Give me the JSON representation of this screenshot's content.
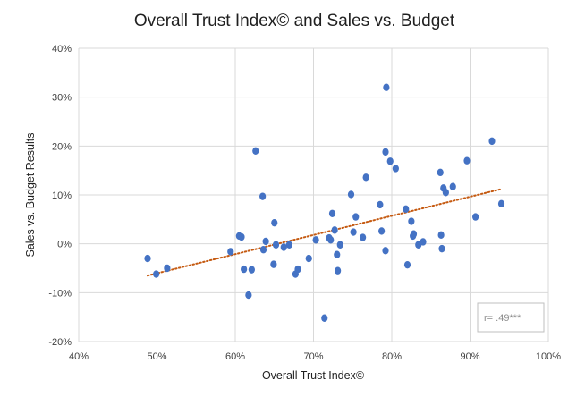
{
  "chart_data": {
    "type": "scatter",
    "title": "Overall Trust Index©  and Sales vs. Budget",
    "xlabel": "Overall Trust Index©",
    "ylabel": "Sales vs. Budget Results",
    "xlim": [
      0.4,
      1.0
    ],
    "ylim": [
      -0.2,
      0.4
    ],
    "x_ticks": [
      0.4,
      0.5,
      0.6,
      0.7,
      0.8,
      0.9,
      1.0
    ],
    "y_ticks": [
      -0.2,
      -0.1,
      0.0,
      0.1,
      0.2,
      0.3,
      0.4
    ],
    "x_tick_labels": [
      "40%",
      "50%",
      "60%",
      "70%",
      "80%",
      "90%",
      "100%"
    ],
    "y_tick_labels": [
      "-20%",
      "-10%",
      "0%",
      "10%",
      "20%",
      "30%",
      "40%"
    ],
    "grid": true,
    "series": [
      {
        "color": "#4472c4",
        "points": [
          [
            0.488,
            -0.03
          ],
          [
            0.499,
            -0.062
          ],
          [
            0.513,
            -0.05
          ],
          [
            0.594,
            -0.016
          ],
          [
            0.605,
            0.016
          ],
          [
            0.608,
            0.014
          ],
          [
            0.611,
            -0.052
          ],
          [
            0.617,
            -0.105
          ],
          [
            0.621,
            -0.053
          ],
          [
            0.626,
            0.19
          ],
          [
            0.635,
            0.097
          ],
          [
            0.636,
            -0.012
          ],
          [
            0.639,
            0.005
          ],
          [
            0.649,
            -0.042
          ],
          [
            0.65,
            0.043
          ],
          [
            0.652,
            -0.002
          ],
          [
            0.662,
            -0.007
          ],
          [
            0.669,
            -0.002
          ],
          [
            0.677,
            -0.062
          ],
          [
            0.68,
            -0.052
          ],
          [
            0.694,
            -0.03
          ],
          [
            0.703,
            0.008
          ],
          [
            0.714,
            -0.152
          ],
          [
            0.72,
            0.012
          ],
          [
            0.722,
            0.008
          ],
          [
            0.724,
            0.062
          ],
          [
            0.727,
            0.028
          ],
          [
            0.73,
            -0.022
          ],
          [
            0.731,
            -0.055
          ],
          [
            0.734,
            -0.002
          ],
          [
            0.748,
            0.101
          ],
          [
            0.751,
            0.024
          ],
          [
            0.754,
            0.055
          ],
          [
            0.763,
            0.013
          ],
          [
            0.767,
            0.136
          ],
          [
            0.785,
            0.08
          ],
          [
            0.787,
            0.026
          ],
          [
            0.792,
            0.188
          ],
          [
            0.792,
            -0.014
          ],
          [
            0.793,
            0.32
          ],
          [
            0.798,
            0.169
          ],
          [
            0.805,
            0.154
          ],
          [
            0.818,
            0.071
          ],
          [
            0.82,
            -0.043
          ],
          [
            0.825,
            0.046
          ],
          [
            0.827,
            0.016
          ],
          [
            0.828,
            0.02
          ],
          [
            0.834,
            -0.002
          ],
          [
            0.84,
            0.004
          ],
          [
            0.862,
            0.146
          ],
          [
            0.863,
            0.018
          ],
          [
            0.864,
            -0.01
          ],
          [
            0.866,
            0.114
          ],
          [
            0.869,
            0.105
          ],
          [
            0.878,
            0.117
          ],
          [
            0.896,
            0.17
          ],
          [
            0.907,
            0.055
          ],
          [
            0.928,
            0.21
          ],
          [
            0.94,
            0.082
          ]
        ]
      }
    ],
    "trendline": {
      "type": "linear",
      "style": "dotted",
      "color": "#c55a11",
      "from": [
        0.488,
        -0.065
      ],
      "to": [
        0.94,
        0.112
      ]
    },
    "annotation": {
      "text": "r= .49***",
      "placement": "bottom-right"
    }
  }
}
